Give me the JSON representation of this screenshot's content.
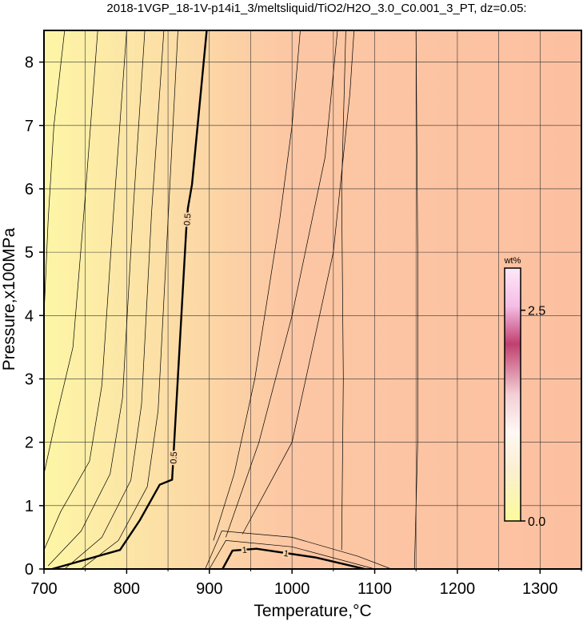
{
  "chart_data": {
    "type": "contour",
    "title": "2018-1VGP_18-1V-p14i1_3/meltsliquid/TiO2/H2O_3.0_C0.001_3_PT, dz=0.05:",
    "x_label": "Temperature,°C",
    "y_label": "Pressure,x100MPa",
    "xlim": [
      700,
      1350
    ],
    "ylim": [
      0,
      8.5
    ],
    "xticks": [
      700,
      800,
      900,
      1000,
      1100,
      1200,
      1300
    ],
    "x_minor_grid": [
      750,
      850,
      950,
      1050,
      1150,
      1250,
      1350
    ],
    "yticks": [
      0,
      1,
      2,
      3,
      4,
      5,
      6,
      7,
      8
    ],
    "grid": true,
    "colorbar": {
      "label": "wt%",
      "lim": [
        0,
        3.0
      ],
      "ticks": [
        {
          "value": 0,
          "label": "0.0"
        },
        2.5
      ]
    },
    "contours": [
      {
        "level": 0.5,
        "labeled": true,
        "T": [
          710,
          792,
          816,
          840,
          855,
          858,
          872,
          874,
          879,
          897
        ],
        "P": [
          0,
          0.3,
          0.77,
          1.33,
          1.41,
          2.1,
          5.34,
          5.69,
          6.07,
          8.53
        ]
      },
      {
        "level": 1,
        "labeled": true,
        "T": [
          916,
          928,
          957,
          1029,
          1088
        ],
        "P": [
          0,
          0.29,
          0.32,
          0.18,
          0
        ]
      },
      {
        "level": 0.45,
        "labeled": false,
        "T": [
          745,
          790,
          825,
          838,
          850,
          862
        ],
        "P": [
          0,
          0.45,
          1.3,
          2.5,
          5.5,
          8.5
        ]
      },
      {
        "level": 0.4,
        "labeled": false,
        "T": [
          725,
          770,
          805,
          818,
          830,
          845
        ],
        "P": [
          0,
          0.5,
          1.4,
          2.6,
          5.6,
          8.5
        ]
      },
      {
        "level": 0.35,
        "labeled": false,
        "T": [
          705,
          745,
          780,
          795,
          808,
          822
        ],
        "P": [
          0.05,
          0.6,
          1.5,
          2.7,
          5.7,
          8.5
        ]
      },
      {
        "level": 0.3,
        "labeled": false,
        "T": [
          700,
          720,
          755,
          770,
          785,
          800
        ],
        "P": [
          0.3,
          0.9,
          1.7,
          2.9,
          5.8,
          8.5
        ]
      },
      {
        "level": 0.2,
        "labeled": false,
        "T": [
          700,
          715,
          735,
          750,
          765
        ],
        "P": [
          1.5,
          2.4,
          3.5,
          5.9,
          8.5
        ]
      },
      {
        "level": 0.1,
        "labeled": false,
        "T": [
          700,
          705,
          712,
          725
        ],
        "P": [
          4.0,
          5.5,
          7.0,
          8.5
        ]
      },
      {
        "level": 0.55,
        "labeled": false,
        "T": [
          905,
          930,
          955,
          985,
          1000,
          1010
        ],
        "P": [
          0.45,
          1.5,
          3.0,
          5.5,
          7.0,
          8.5
        ]
      },
      {
        "level": 0.6,
        "labeled": false,
        "T": [
          920,
          960,
          1000,
          1040,
          1055
        ],
        "P": [
          0.5,
          2.0,
          4.0,
          6.5,
          8.5
        ]
      },
      {
        "level": 0.65,
        "labeled": false,
        "T": [
          940,
          1000,
          1050,
          1070,
          1075
        ],
        "P": [
          0.55,
          2.0,
          5.0,
          7.5,
          8.5
        ]
      },
      {
        "level": 0.7,
        "labeled": false,
        "T": [
          1060,
          1062,
          1060,
          1065
        ],
        "P": [
          0.3,
          3.0,
          6.0,
          8.5
        ]
      },
      {
        "level": 0.75,
        "labeled": false,
        "T": [
          1148,
          1152,
          1152,
          1150
        ],
        "P": [
          0,
          2,
          5,
          8.5
        ]
      },
      {
        "level": 0.8,
        "labeled": false,
        "T": [
          895,
          915,
          1000,
          1080,
          1120
        ],
        "P": [
          0,
          0.6,
          0.5,
          0.2,
          0
        ]
      },
      {
        "level": 0.9,
        "labeled": false,
        "T": [
          900,
          920,
          1000,
          1100
        ],
        "P": [
          0,
          0.45,
          0.35,
          0
        ]
      }
    ]
  }
}
